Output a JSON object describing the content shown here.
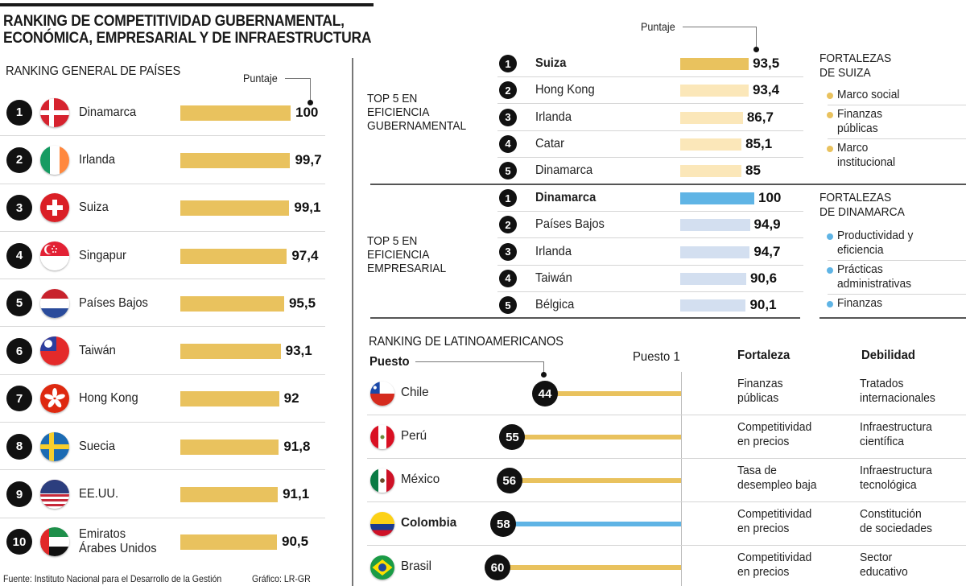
{
  "header": {
    "title_line1": "RANKING DE COMPETITIVIDAD GUBERNAMENTAL,",
    "title_line2": "ECONÓMICA, EMPRESARIAL Y DE INFRAESTRUCTURA"
  },
  "colors": {
    "gold": "#E9C25E",
    "gold_light": "#FBE7B9",
    "blue": "#5FB4E5",
    "blue_light": "#D3DFF0",
    "black": "#111111"
  },
  "chart_data": [
    {
      "type": "bar",
      "title": "RANKING GENERAL DE PAÍSES",
      "value_label": "Puntaje",
      "categories": [
        "Dinamarca",
        "Irlanda",
        "Suiza",
        "Singapur",
        "Países Bajos",
        "Taiwán",
        "Hong Kong",
        "Suecia",
        "EE.UU.",
        "Emiratos Árabes Unidos"
      ],
      "ranks": [
        "1",
        "2",
        "3",
        "4",
        "5",
        "6",
        "7",
        "8",
        "9",
        "10"
      ],
      "values": [
        100,
        99.7,
        99.1,
        97.4,
        95.5,
        93.1,
        92,
        91.8,
        91.1,
        90.5
      ],
      "value_labels": [
        "100",
        "99,7",
        "99,1",
        "97,4",
        "95,5",
        "93,1",
        "92",
        "91,8",
        "91,1",
        "90,5"
      ],
      "country_lines": [
        [
          "Dinamarca"
        ],
        [
          "Irlanda"
        ],
        [
          "Suiza"
        ],
        [
          "Singapur"
        ],
        [
          "Países Bajos"
        ],
        [
          "Taiwán"
        ],
        [
          "Hong Kong"
        ],
        [
          "Suecia"
        ],
        [
          "EE.UU."
        ],
        [
          "Emiratos",
          "Árabes Unidos"
        ]
      ]
    },
    {
      "type": "bar",
      "title": "TOP 5 EN EFICIENCIA GUBERNAMENTAL",
      "title_lines": [
        "TOP 5 EN",
        "EFICIENCIA",
        "GUBERNAMENTAL"
      ],
      "value_label": "Puntaje",
      "categories": [
        "Suiza",
        "Hong Kong",
        "Irlanda",
        "Catar",
        "Dinamarca"
      ],
      "ranks": [
        "1",
        "2",
        "3",
        "4",
        "5"
      ],
      "values": [
        93.5,
        93.4,
        86.7,
        85.1,
        85
      ],
      "value_labels": [
        "93,5",
        "93,4",
        "86,7",
        "85,1",
        "85"
      ]
    },
    {
      "type": "bar",
      "title": "TOP 5 EN EFICIENCIA EMPRESARIAL",
      "title_lines": [
        "TOP 5 EN",
        "EFICIENCIA",
        "EMPRESARIAL"
      ],
      "categories": [
        "Dinamarca",
        "Países Bajos",
        "Irlanda",
        "Taiwán",
        "Bélgica"
      ],
      "ranks": [
        "1",
        "2",
        "3",
        "4",
        "5"
      ],
      "values": [
        100,
        94.9,
        94.7,
        90.6,
        90.1
      ],
      "value_labels": [
        "100",
        "94,9",
        "94,7",
        "90,6",
        "90,1"
      ]
    },
    {
      "type": "table",
      "title": "RANKING DE LATINOAMERICANOS",
      "position_label": "Puesto",
      "reference_label": "Puesto 1",
      "columns": [
        "Fortaleza",
        "Debilidad"
      ],
      "categories": [
        "Chile",
        "Perú",
        "México",
        "Colombia",
        "Brasil"
      ],
      "values": [
        44,
        55,
        56,
        58,
        60
      ],
      "value_labels": [
        "44",
        "55",
        "56",
        "58",
        "60"
      ],
      "highlight": "Colombia",
      "rows": [
        {
          "country": "Chile",
          "rank": "44",
          "fortaleza": [
            "Finanzas",
            "públicas"
          ],
          "debilidad": [
            "Tratados",
            "internacionales"
          ]
        },
        {
          "country": "Perú",
          "rank": "55",
          "fortaleza": [
            "Competitividad",
            "en precios"
          ],
          "debilidad": [
            "Infraestructura",
            "científica"
          ]
        },
        {
          "country": "México",
          "rank": "56",
          "fortaleza": [
            "Tasa de",
            "desempleo baja"
          ],
          "debilidad": [
            "Infraestructura",
            "tecnológica"
          ]
        },
        {
          "country": "Colombia",
          "rank": "58",
          "fortaleza": [
            "Competitividad",
            "en precios"
          ],
          "debilidad": [
            "Constitución",
            "de sociedades"
          ]
        },
        {
          "country": "Brasil",
          "rank": "60",
          "fortaleza": [
            "Competitividad",
            "en precios"
          ],
          "debilidad": [
            "Sector",
            "educativo"
          ]
        }
      ]
    }
  ],
  "strengths": {
    "suiza": {
      "title_lines": [
        "FORTALEZAS",
        "DE SUIZA"
      ],
      "items": [
        [
          "Marco social"
        ],
        [
          "Finanzas",
          "públicas"
        ],
        [
          "Marco",
          "institucional"
        ]
      ]
    },
    "dinamarca": {
      "title_lines": [
        "FORTALEZAS",
        "DE DINAMARCA"
      ],
      "items": [
        [
          "Productividad y",
          "eficiencia"
        ],
        [
          "Prácticas",
          "administrativas"
        ],
        [
          "Finanzas"
        ]
      ]
    }
  },
  "footer": {
    "source": "Fuente: Instituto Nacional para el Desarrollo de la Gestión",
    "credit": "Gráfico: LR-GR"
  }
}
